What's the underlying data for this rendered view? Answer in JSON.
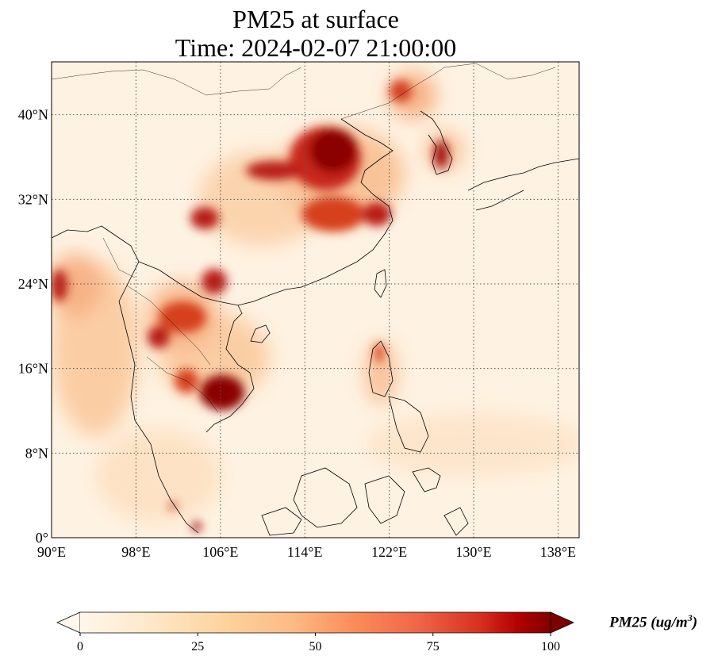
{
  "title": {
    "line1": "PM25 at surface",
    "line2": "Time: 2024-02-07 21:00:00"
  },
  "map": {
    "projection": "PlateCarree",
    "extent_lon": [
      90,
      140
    ],
    "extent_lat": [
      0,
      45
    ],
    "gridlines": "dotted",
    "lon_ticks": [
      {
        "value": 90,
        "label": "90°E"
      },
      {
        "value": 98,
        "label": "98°E"
      },
      {
        "value": 106,
        "label": "106°E"
      },
      {
        "value": 114,
        "label": "114°E"
      },
      {
        "value": 122,
        "label": "122°E"
      },
      {
        "value": 130,
        "label": "130°E"
      },
      {
        "value": 138,
        "label": "138°E"
      }
    ],
    "lat_ticks": [
      {
        "value": 0,
        "label": "0°"
      },
      {
        "value": 8,
        "label": "8°N"
      },
      {
        "value": 16,
        "label": "16°N"
      },
      {
        "value": 24,
        "label": "24°N"
      },
      {
        "value": 32,
        "label": "32°N"
      },
      {
        "value": 40,
        "label": "40°N"
      }
    ],
    "field_colors": {
      "background": "#fef2e2",
      "low": "#fde0c0",
      "mid": "#f49a60",
      "high": "#c8281a",
      "max": "#7f0000"
    }
  },
  "colorbar": {
    "min": 0,
    "max": 100,
    "extend": "both",
    "colormap": "OrRd",
    "ticks": [
      {
        "value": 0,
        "label": "0"
      },
      {
        "value": 25,
        "label": "25"
      },
      {
        "value": 50,
        "label": "50"
      },
      {
        "value": 75,
        "label": "75"
      },
      {
        "value": 100,
        "label": "100"
      }
    ],
    "label_main": "PM25 (ug/m",
    "label_sup": "3",
    "label_end": ")"
  }
}
